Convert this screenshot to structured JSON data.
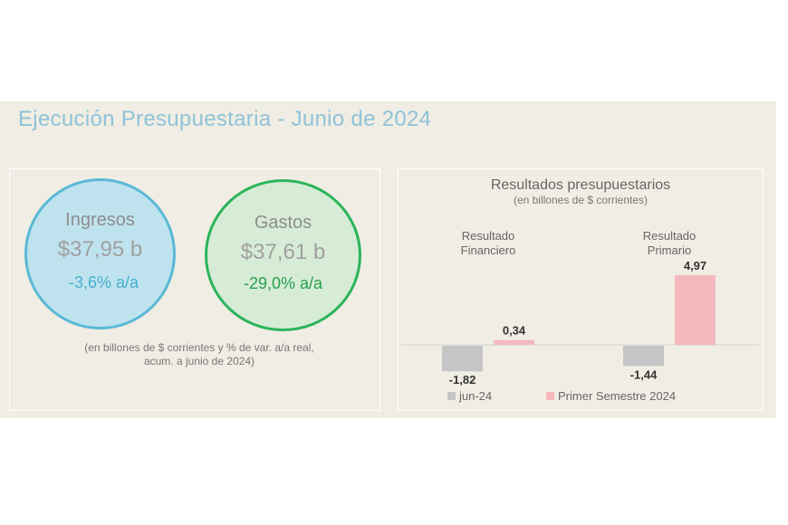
{
  "title": "Ejecución Presupuestaria - Junio de 2024",
  "ingresos": {
    "label": "Ingresos",
    "value": "$37,95 b",
    "variation": "-3,6% a/a"
  },
  "gastos": {
    "label": "Gastos",
    "value": "$37,61 b",
    "variation": "-29,0% a/a"
  },
  "footnote_line1": "(en billones de $ corrientes y % de var. a/a real,",
  "footnote_line2": "acum. a junio de 2024)",
  "colors": {
    "title": "#8fc3d8",
    "ingresos_border": "#5bb9d6",
    "ingresos_fill": "#bfe3ee",
    "gastos_border": "#2bb45a",
    "gastos_fill": "#d7ecd6",
    "bar_jun": "#c5c5c5",
    "bar_semestre": "#f4b8bd"
  },
  "chart_data": {
    "type": "bar",
    "title": "Resultados presupuestarios",
    "subtitle": "(en billones de $ corrientes)",
    "categories": [
      [
        "Resultado",
        "Financiero"
      ],
      [
        "Resultado",
        "Primario"
      ]
    ],
    "series": [
      {
        "name": "jun-24",
        "values": [
          -1.82,
          -1.44
        ],
        "labels": [
          "-1,82",
          "-1,44"
        ]
      },
      {
        "name": "Primer Semestre 2024",
        "values": [
          0.34,
          4.97
        ],
        "labels": [
          "0,34",
          "4,97"
        ]
      }
    ],
    "legend_position": "bottom"
  }
}
